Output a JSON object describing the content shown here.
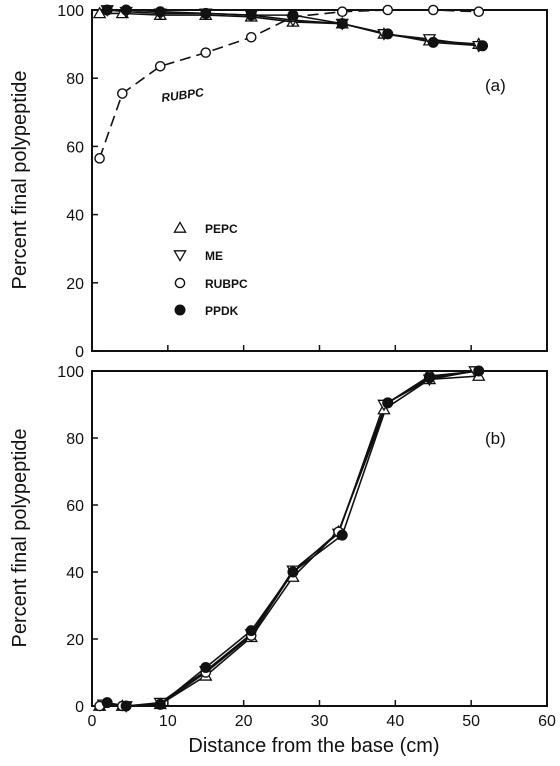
{
  "chart_data": [
    {
      "type": "line",
      "panel_label": "(a)",
      "ylabel": "Percent final polypeptide",
      "xlim": [
        0,
        60
      ],
      "ylim": [
        0,
        100
      ],
      "yticks": [
        0,
        20,
        40,
        60,
        80,
        100
      ],
      "annotation": "RUBPC",
      "legend": {
        "placement": "lower-left",
        "entries": [
          {
            "label": "PEPC",
            "marker": "triangle-up-open"
          },
          {
            "label": "ME",
            "marker": "triangle-down-open"
          },
          {
            "label": "RUBPC",
            "marker": "circle-open"
          },
          {
            "label": "PPDK",
            "marker": "circle-filled"
          }
        ]
      },
      "series": [
        {
          "name": "PEPC",
          "marker": "triangle-up-open",
          "line": "solid",
          "x": [
            1,
            4,
            9,
            15,
            21,
            26.5,
            33,
            38.5,
            44.5,
            51
          ],
          "y": [
            99,
            99,
            98.5,
            98.5,
            98,
            96.5,
            96,
            93,
            91,
            90
          ]
        },
        {
          "name": "ME",
          "marker": "triangle-down-open",
          "line": "solid",
          "x": [
            2,
            4.5,
            9,
            15,
            21,
            26.5,
            33,
            38.5,
            44.5,
            51
          ],
          "y": [
            100,
            99.5,
            99,
            99,
            98.5,
            97,
            96,
            93,
            91.5,
            89.5
          ]
        },
        {
          "name": "RUBPC",
          "marker": "circle-open",
          "line": "dashed",
          "x": [
            1,
            4,
            9,
            15,
            21,
            26.5,
            33,
            39,
            45,
            51
          ],
          "y": [
            56.5,
            75.5,
            83.5,
            87.5,
            92,
            98,
            99.5,
            100,
            100,
            99.5
          ]
        },
        {
          "name": "PPDK",
          "marker": "circle-filled",
          "line": "solid",
          "x": [
            2,
            4.5,
            9,
            15,
            21,
            26.5,
            33,
            39,
            45,
            51.5
          ],
          "y": [
            100,
            100,
            99.5,
            99,
            98.5,
            98.5,
            96,
            93,
            90.5,
            89.5
          ]
        }
      ]
    },
    {
      "type": "line",
      "panel_label": "(b)",
      "ylabel": "Percent final polypeptide",
      "xlabel": "Distance from the base (cm)",
      "xlim": [
        0,
        60
      ],
      "ylim": [
        0,
        100
      ],
      "xticks": [
        0,
        10,
        20,
        30,
        40,
        50,
        60
      ],
      "yticks": [
        0,
        20,
        40,
        60,
        80,
        100
      ],
      "series": [
        {
          "name": "PEPC",
          "marker": "triangle-up-open",
          "line": "solid",
          "x": [
            1,
            4,
            9,
            15,
            21,
            26.5,
            32.5,
            38.5,
            44.5,
            51
          ],
          "y": [
            0,
            0,
            0.5,
            9,
            20.5,
            38.5,
            52,
            88.5,
            97.5,
            98.5
          ]
        },
        {
          "name": "ME",
          "marker": "triangle-down-open",
          "line": "solid",
          "x": [
            1.5,
            4.5,
            9,
            15,
            21,
            26.5,
            32.5,
            38.5,
            44.5,
            50.5
          ],
          "y": [
            0.5,
            0,
            1,
            10.5,
            21.5,
            40.5,
            51.5,
            90,
            97.5,
            100
          ]
        },
        {
          "name": "RUBPC",
          "marker": "circle-open",
          "line": "solid",
          "x": [
            1,
            4,
            9,
            15,
            21,
            26.5,
            32.5,
            39,
            44.5,
            51
          ],
          "y": [
            0,
            0,
            0.5,
            10,
            21,
            40,
            52,
            90.5,
            98.5,
            100
          ]
        },
        {
          "name": "PPDK",
          "marker": "circle-filled",
          "line": "solid",
          "x": [
            2,
            4.5,
            9,
            15,
            21,
            26.5,
            33,
            39,
            44.5,
            51
          ],
          "y": [
            1,
            0,
            0.5,
            11.5,
            22.5,
            40,
            51,
            90.5,
            98,
            100
          ]
        }
      ]
    }
  ]
}
